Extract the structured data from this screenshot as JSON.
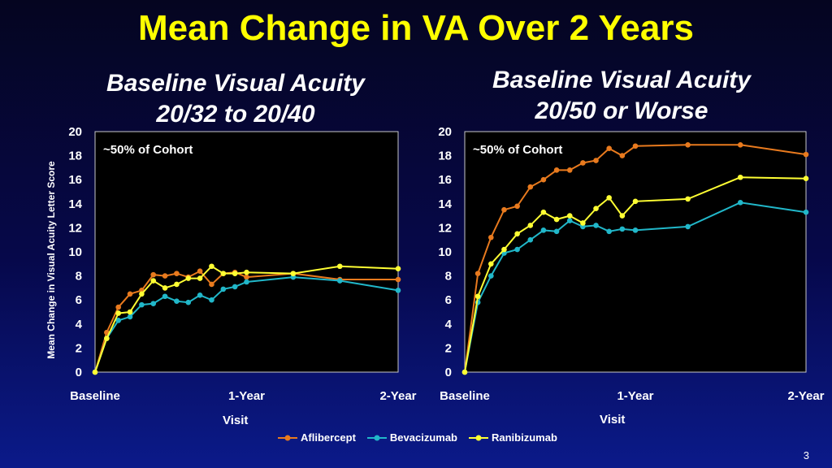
{
  "title": "Mean Change in VA Over 2 Years",
  "page_number": "3",
  "y_axis_label": "Mean Change in Visual Acuity Letter Score",
  "x_axis_label": "Visit",
  "colors": {
    "Aflibercept": "#e87a1e",
    "Bevacizumab": "#21b7c9",
    "Ranibizumab": "#ffff33",
    "title": "#ffff00"
  },
  "legend": [
    "Aflibercept",
    "Bevacizumab",
    "Ranibizumab"
  ],
  "chart_data": [
    {
      "type": "line",
      "title": "Baseline Visual Acuity 20/32 to 20/40",
      "title_line1": "Baseline Visual Acuity",
      "title_line2": "20/32 to 20/40",
      "annotation": "~50% of Cohort",
      "xlabel": "Visit",
      "ylabel": "Mean Change in Visual Acuity Letter Score",
      "ylim": [
        0,
        20
      ],
      "yticks": [
        0,
        2,
        4,
        6,
        8,
        10,
        12,
        14,
        16,
        18,
        20
      ],
      "xlim": [
        0,
        104
      ],
      "xtick_labels": [
        {
          "x": 0,
          "label": "Baseline"
        },
        {
          "x": 52,
          "label": "1-Year"
        },
        {
          "x": 104,
          "label": "2-Year"
        }
      ],
      "x_units": "weeks",
      "series": [
        {
          "name": "Aflibercept",
          "x": [
            0,
            4,
            8,
            12,
            16,
            20,
            24,
            28,
            32,
            36,
            40,
            44,
            48,
            52,
            68,
            84,
            104
          ],
          "y": [
            0,
            3.3,
            5.4,
            6.5,
            6.8,
            8.1,
            8.0,
            8.2,
            7.9,
            8.4,
            7.3,
            8.2,
            8.3,
            7.9,
            8.2,
            7.7,
            7.7
          ]
        },
        {
          "name": "Bevacizumab",
          "x": [
            0,
            4,
            8,
            12,
            16,
            20,
            24,
            28,
            32,
            36,
            40,
            44,
            48,
            52,
            68,
            84,
            104
          ],
          "y": [
            0,
            2.8,
            4.3,
            4.6,
            5.6,
            5.7,
            6.3,
            5.9,
            5.8,
            6.4,
            6.0,
            6.9,
            7.1,
            7.5,
            7.9,
            7.6,
            6.8
          ]
        },
        {
          "name": "Ranibizumab",
          "x": [
            0,
            4,
            8,
            12,
            16,
            20,
            24,
            28,
            32,
            36,
            40,
            44,
            48,
            52,
            68,
            84,
            104
          ],
          "y": [
            0,
            2.8,
            4.9,
            5.0,
            6.5,
            7.6,
            7.0,
            7.3,
            7.8,
            7.8,
            8.8,
            8.2,
            8.2,
            8.3,
            8.2,
            8.8,
            8.6
          ]
        }
      ]
    },
    {
      "type": "line",
      "title": "Baseline Visual Acuity 20/50 or Worse",
      "title_line1": "Baseline Visual Acuity",
      "title_line2": "20/50 or Worse",
      "annotation": "~50% of Cohort",
      "xlabel": "Visit",
      "ylabel": "",
      "ylim": [
        0,
        20
      ],
      "yticks": [
        0,
        2,
        4,
        6,
        8,
        10,
        12,
        14,
        16,
        18,
        20
      ],
      "xlim": [
        0,
        104
      ],
      "xtick_labels": [
        {
          "x": 0,
          "label": "Baseline"
        },
        {
          "x": 52,
          "label": "1-Year"
        },
        {
          "x": 104,
          "label": "2-Year"
        }
      ],
      "x_units": "weeks",
      "series": [
        {
          "name": "Aflibercept",
          "x": [
            0,
            4,
            8,
            12,
            16,
            20,
            24,
            28,
            32,
            36,
            40,
            44,
            48,
            52,
            68,
            84,
            104
          ],
          "y": [
            0,
            8.2,
            11.2,
            13.5,
            13.8,
            15.4,
            16.0,
            16.8,
            16.8,
            17.4,
            17.6,
            18.6,
            18.0,
            18.8,
            18.9,
            18.9,
            18.1
          ]
        },
        {
          "name": "Bevacizumab",
          "x": [
            0,
            4,
            8,
            12,
            16,
            20,
            24,
            28,
            32,
            36,
            40,
            44,
            48,
            52,
            68,
            84,
            104
          ],
          "y": [
            0,
            5.8,
            8.0,
            9.9,
            10.2,
            11.0,
            11.8,
            11.7,
            12.6,
            12.1,
            12.2,
            11.7,
            11.9,
            11.8,
            12.1,
            14.1,
            13.3
          ]
        },
        {
          "name": "Ranibizumab",
          "x": [
            0,
            4,
            8,
            12,
            16,
            20,
            24,
            28,
            32,
            36,
            40,
            44,
            48,
            52,
            68,
            84,
            104
          ],
          "y": [
            0,
            6.3,
            9.0,
            10.2,
            11.5,
            12.2,
            13.3,
            12.7,
            13.0,
            12.4,
            13.6,
            14.5,
            13.0,
            14.2,
            14.4,
            16.2,
            16.1
          ]
        }
      ]
    }
  ]
}
